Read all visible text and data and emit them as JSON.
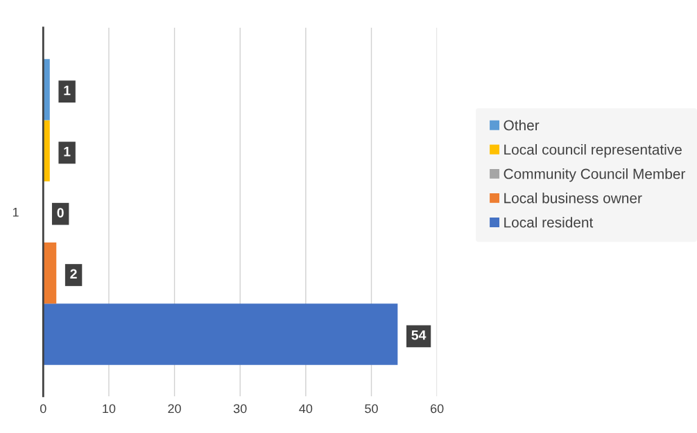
{
  "chart_data": {
    "type": "bar",
    "orientation": "horizontal",
    "categories": [
      "1"
    ],
    "series": [
      {
        "name": "Local resident",
        "color": "#4472c4",
        "values": [
          54
        ]
      },
      {
        "name": "Local business owner",
        "color": "#ed7d31",
        "values": [
          2
        ]
      },
      {
        "name": "Community Council Member",
        "color": "#a5a5a5",
        "values": [
          0
        ]
      },
      {
        "name": "Local council representative",
        "color": "#ffc000",
        "values": [
          1
        ]
      },
      {
        "name": "Other",
        "color": "#5b9bd5",
        "values": [
          1
        ]
      }
    ],
    "xlim": [
      0,
      60
    ],
    "xticks": [
      0,
      10,
      20,
      30,
      40,
      50,
      60
    ],
    "grid": "x",
    "legend": "right",
    "data_labels": true
  }
}
